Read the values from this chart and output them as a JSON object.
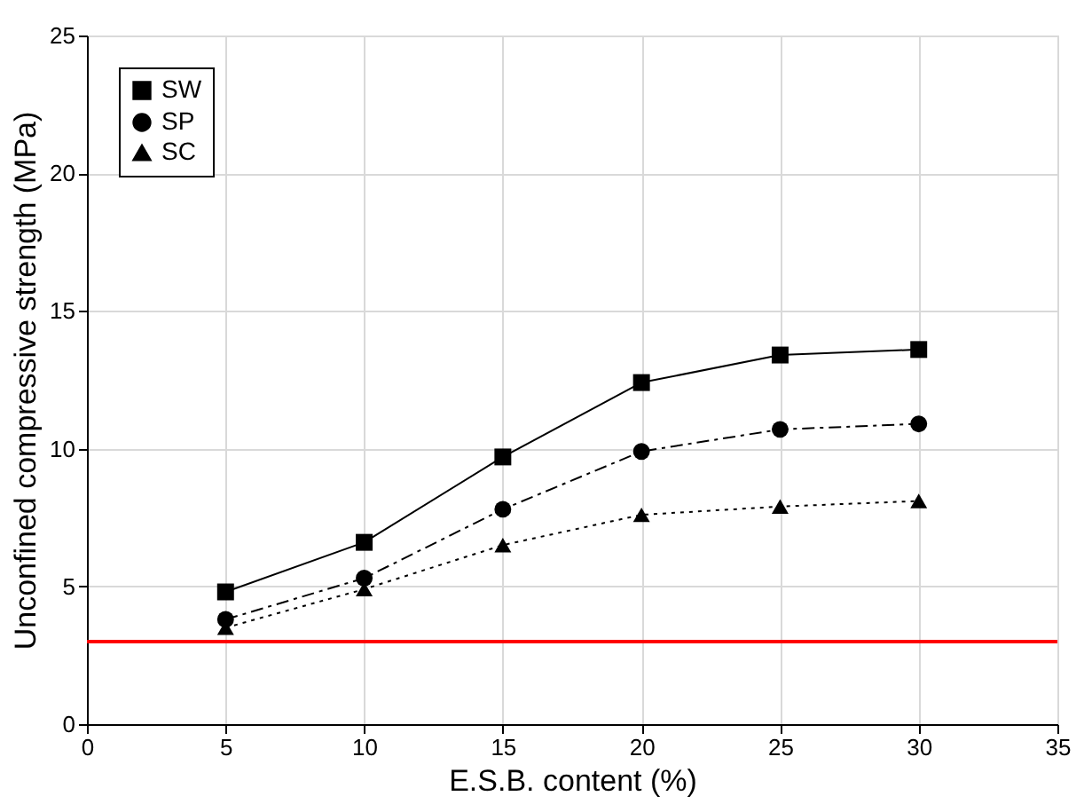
{
  "chart_data": {
    "type": "line",
    "xlabel": "E.S.B. content (%)",
    "ylabel": "Unconfined compressive strength (MPa)",
    "x": [
      5,
      10,
      15,
      20,
      25,
      30
    ],
    "series": [
      {
        "name": "SW",
        "color": "#000000",
        "marker": "square",
        "line_style": "solid",
        "values": [
          4.8,
          6.6,
          9.7,
          12.4,
          13.4,
          13.6
        ]
      },
      {
        "name": "SP",
        "color": "#000000",
        "marker": "circle",
        "line_style": "dashed",
        "values": [
          3.8,
          5.3,
          7.8,
          9.9,
          10.7,
          10.9
        ]
      },
      {
        "name": "SC",
        "color": "#000000",
        "marker": "triangle",
        "line_style": "dotted",
        "values": [
          3.5,
          4.9,
          6.5,
          7.6,
          7.9,
          8.1
        ]
      }
    ],
    "xlim": [
      0,
      35
    ],
    "xticks": [
      0,
      5,
      10,
      15,
      20,
      25,
      30,
      35
    ],
    "ylim": [
      0,
      25
    ],
    "yticks": [
      0,
      5,
      10,
      15,
      20,
      25
    ],
    "ref_lines": [
      {
        "axis": "y",
        "value": 3,
        "color": "#ff0000",
        "line_style": "solid"
      }
    ],
    "grid": true,
    "legend": "top left"
  }
}
